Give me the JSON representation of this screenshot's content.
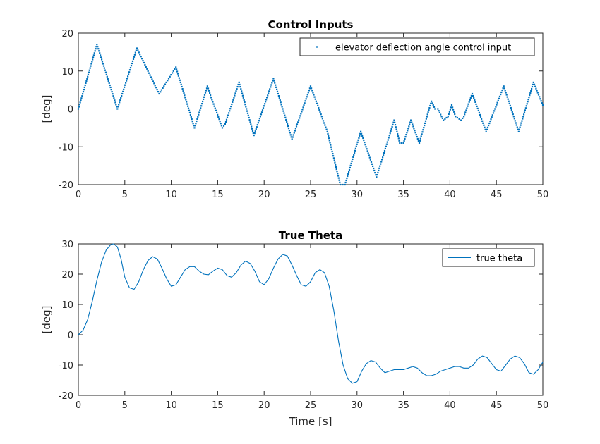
{
  "chart_data": [
    {
      "type": "scatter",
      "title": "Control Inputs",
      "xlabel": "",
      "ylabel": "[deg]",
      "xlim": [
        0,
        50
      ],
      "ylim": [
        -20,
        20
      ],
      "xticks": [
        0,
        5,
        10,
        15,
        20,
        25,
        30,
        35,
        40,
        45,
        50
      ],
      "yticks": [
        -20,
        -10,
        0,
        10,
        20
      ],
      "legend_position": "top-right",
      "color": "#0072BD",
      "series": [
        {
          "name": "elevator deflection angle control input",
          "x": [
            0,
            2.0,
            4.2,
            6.3,
            8.7,
            10.5,
            12.5,
            13.9,
            14.3,
            15.5,
            15.8,
            17.3,
            18.9,
            21.0,
            23.0,
            25.0,
            26.8,
            28.2,
            28.7,
            30.4,
            32.1,
            34.0,
            34.6,
            35.0,
            35.8,
            36.7,
            38.0,
            38.4,
            38.7,
            39.1,
            39.3,
            39.8,
            40.2,
            40.6,
            41.2,
            41.5,
            42.4,
            43.9,
            45.8,
            47.4,
            49.0,
            50.0
          ],
          "y": [
            0,
            17,
            0,
            16,
            4,
            11,
            -5,
            6,
            3,
            -5,
            -4,
            7,
            -7,
            8,
            -8,
            6,
            -6,
            -20,
            -20,
            -6,
            -18,
            -3,
            -9,
            -9,
            -3,
            -9,
            2,
            0,
            0,
            -2,
            -3,
            -2,
            1,
            -2,
            -3,
            -2,
            4,
            -6,
            6,
            -6,
            7,
            1
          ]
        }
      ]
    },
    {
      "type": "line",
      "title": "True Theta",
      "xlabel": "Time [s]",
      "ylabel": "[deg]",
      "xlim": [
        0,
        50
      ],
      "ylim": [
        -20,
        30
      ],
      "xticks": [
        0,
        5,
        10,
        15,
        20,
        25,
        30,
        35,
        40,
        45,
        50
      ],
      "yticks": [
        -20,
        -10,
        0,
        10,
        20,
        30
      ],
      "legend_position": "top-right",
      "color": "#0072BD",
      "series": [
        {
          "name": "true theta",
          "x": [
            0,
            0.5,
            1.0,
            1.5,
            2.0,
            2.5,
            3.0,
            3.5,
            3.8,
            4.2,
            4.6,
            5.0,
            5.5,
            6.0,
            6.5,
            7.0,
            7.5,
            8.0,
            8.5,
            9.0,
            9.5,
            10.0,
            10.5,
            11.0,
            11.5,
            12.0,
            12.5,
            13.0,
            13.5,
            14.0,
            14.5,
            15.0,
            15.5,
            16.0,
            16.5,
            17.0,
            17.5,
            18.0,
            18.5,
            19.0,
            19.5,
            20.0,
            20.5,
            21.0,
            21.5,
            22.0,
            22.5,
            23.0,
            23.5,
            24.0,
            24.5,
            25.0,
            25.5,
            26.0,
            26.5,
            27.0,
            27.5,
            28.0,
            28.5,
            29.0,
            29.5,
            30.0,
            30.5,
            31.0,
            31.5,
            32.0,
            32.5,
            33.0,
            33.5,
            34.0,
            34.5,
            35.0,
            35.5,
            36.0,
            36.5,
            37.0,
            37.5,
            38.0,
            38.5,
            39.0,
            39.5,
            40.0,
            40.5,
            41.0,
            41.5,
            42.0,
            42.5,
            43.0,
            43.5,
            44.0,
            44.5,
            45.0,
            45.5,
            46.0,
            46.5,
            47.0,
            47.5,
            48.0,
            48.5,
            49.0,
            49.5,
            50.0
          ],
          "y": [
            0,
            1.5,
            5,
            11,
            18,
            24,
            28,
            29.8,
            30,
            29,
            25,
            19,
            15.5,
            15,
            17.5,
            21.5,
            24.5,
            25.8,
            25,
            22,
            18.5,
            16,
            16.5,
            19,
            21.5,
            22.5,
            22.5,
            21,
            20,
            19.8,
            21,
            22,
            21.5,
            19.5,
            19,
            20.5,
            23,
            24.3,
            23.5,
            21,
            17.5,
            16.5,
            18.5,
            22,
            25,
            26.5,
            26,
            23,
            19.5,
            16.5,
            16,
            17.5,
            20.5,
            21.5,
            20.5,
            16,
            8,
            -2,
            -10,
            -14.5,
            -16,
            -15.5,
            -12,
            -9.5,
            -8.5,
            -9,
            -11,
            -12.5,
            -12,
            -11.5,
            -11.5,
            -11.5,
            -11,
            -10.5,
            -11,
            -12.5,
            -13.5,
            -13.5,
            -13,
            -12,
            -11.5,
            -11,
            -10.5,
            -10.5,
            -11,
            -11,
            -10,
            -8,
            -7,
            -7.5,
            -9.5,
            -11.5,
            -12,
            -10,
            -8,
            -7,
            -7.5,
            -9.5,
            -12.5,
            -13,
            -11.5,
            -9
          ]
        }
      ]
    }
  ]
}
